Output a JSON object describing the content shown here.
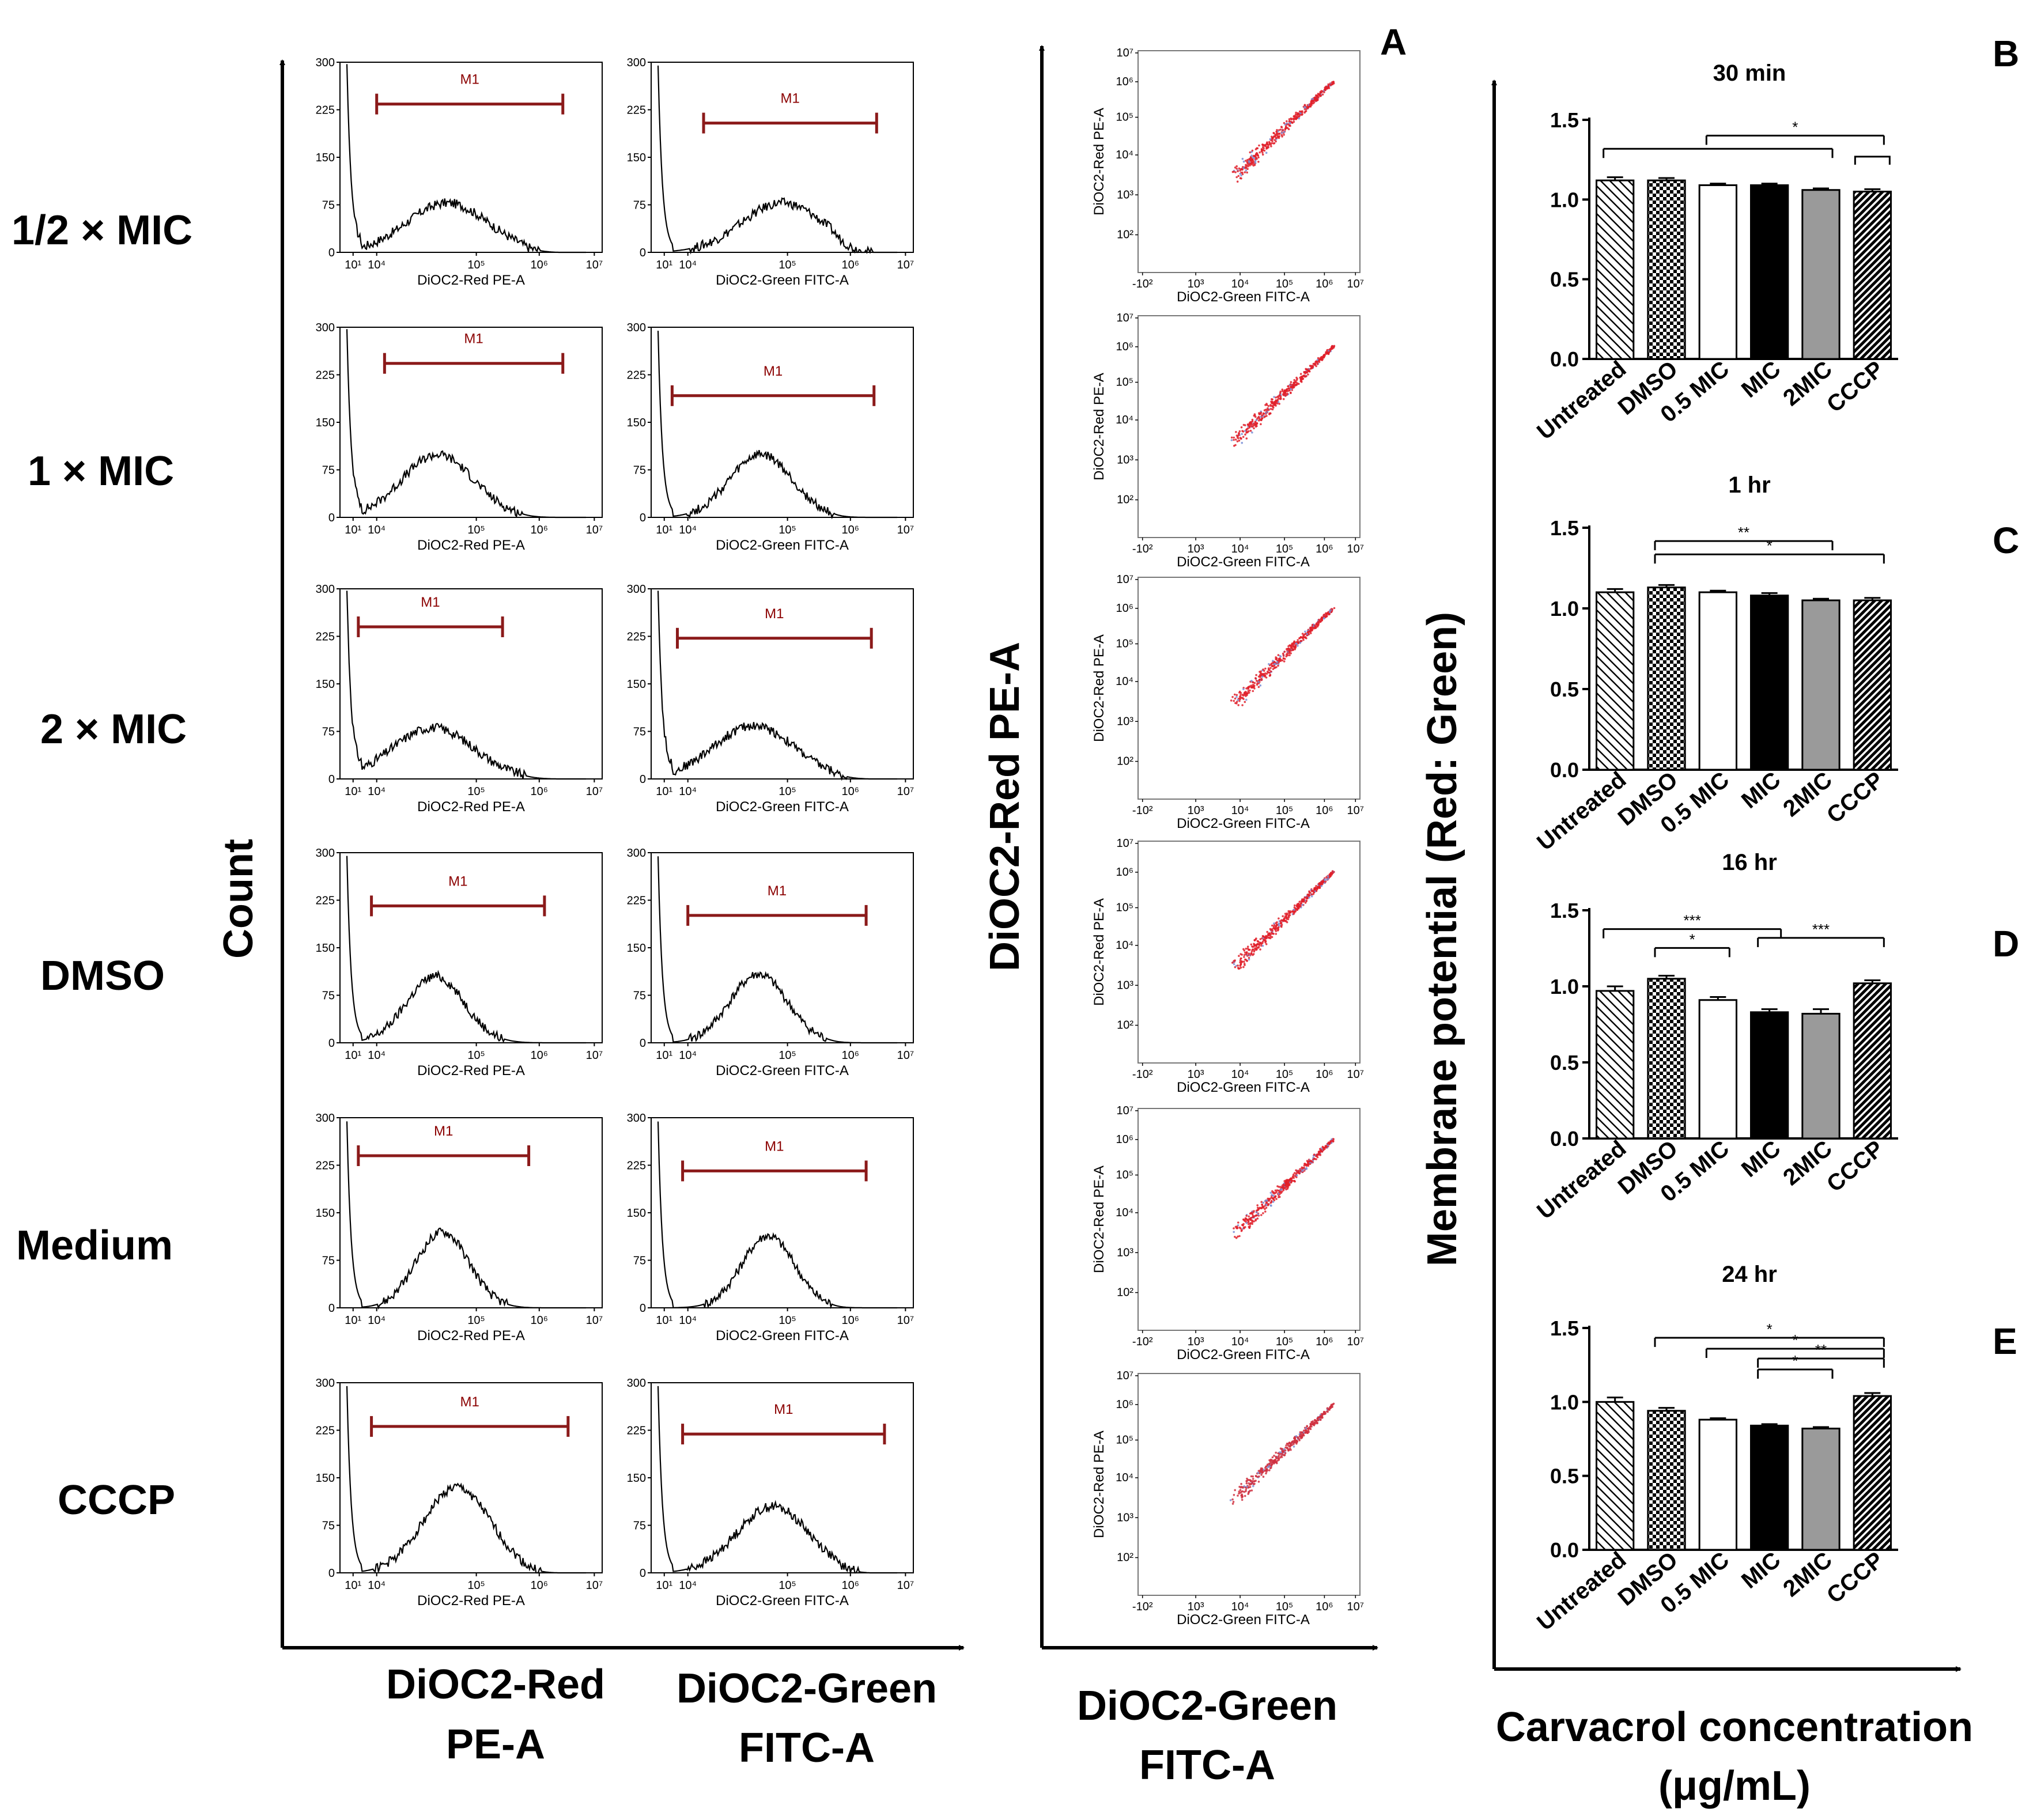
{
  "panel_labels": [
    "A",
    "B",
    "C",
    "D",
    "E"
  ],
  "row_labels": [
    "1/2 × MIC",
    "1 × MIC",
    "2 × MIC",
    "DMSO",
    "Medium",
    "CCCP"
  ],
  "axis_labels": {
    "hist_y": "Count",
    "hist_x_red": [
      "DiOC2-Red",
      "PE-A"
    ],
    "hist_x_green": [
      "DiOC2-Green",
      "FITC-A"
    ],
    "scatter_y": "DiOC2-Red PE-A",
    "scatter_x": [
      "DiOC2-Green",
      "FITC-A"
    ],
    "bar_y": "Membrane potential (Red: Green)",
    "bar_x": [
      "Carvacrol concentration",
      "(μg/mL)"
    ]
  },
  "chart_data": [
    {
      "type": "histogram",
      "panel": "A (histograms)",
      "columns": [
        "DiOC2-Red PE-A",
        "DiOC2-Green FITC-A"
      ],
      "gate_label": "M1",
      "y_ticks": [
        "0",
        "75",
        "150",
        "225",
        "300"
      ],
      "ylim": [
        0,
        300
      ],
      "x_ticks": [
        "10¹",
        "10⁴",
        "10⁵",
        "10⁶",
        "10⁷"
      ],
      "rows": [
        "1/2 × MIC",
        "1 × MIC",
        "2 × MIC",
        "DMSO",
        "Medium",
        "CCCP"
      ]
    },
    {
      "type": "scatter",
      "panel": "A (dot plots)",
      "xlabel": "DiOC2-Green FITC-A",
      "ylabel": "DiOC2-Red PE-A",
      "x_ticks": [
        "-10²",
        "10³",
        "10⁴",
        "10⁵",
        "10⁶",
        "10⁷"
      ],
      "y_ticks": [
        "10²",
        "10³",
        "10⁴",
        "10⁵",
        "10⁶",
        "10⁷"
      ],
      "x_range_log": [
        3.9,
        6.3
      ],
      "y_range_log": [
        3.9,
        6.2
      ],
      "rows": [
        "1/2 × MIC",
        "1 × MIC",
        "2 × MIC",
        "DMSO",
        "Medium",
        "CCCP"
      ]
    },
    {
      "type": "bar",
      "panel": "B",
      "title": "30 min",
      "categories": [
        "Untreated",
        "DMSO",
        "0.5 MIC",
        "MIC",
        "2MIC",
        "CCCP"
      ],
      "values": [
        1.12,
        1.12,
        1.09,
        1.09,
        1.06,
        1.05
      ],
      "errors": [
        0.02,
        0.015,
        0.01,
        0.01,
        0.01,
        0.015
      ],
      "ylim": [
        0,
        1.5
      ],
      "yticks": [
        "0.0",
        "0.5",
        "1.0",
        "1.5"
      ],
      "significance": [
        "*"
      ]
    },
    {
      "type": "bar",
      "panel": "C",
      "title": "1 hr",
      "categories": [
        "Untreated",
        "DMSO",
        "0.5 MIC",
        "MIC",
        "2MIC",
        "CCCP"
      ],
      "values": [
        1.1,
        1.13,
        1.1,
        1.08,
        1.05,
        1.05
      ],
      "errors": [
        0.02,
        0.015,
        0.01,
        0.015,
        0.01,
        0.015
      ],
      "ylim": [
        0,
        1.5
      ],
      "yticks": [
        "0.0",
        "0.5",
        "1.0",
        "1.5"
      ],
      "significance": [
        "**",
        "*"
      ]
    },
    {
      "type": "bar",
      "panel": "D",
      "title": "16 hr",
      "categories": [
        "Untreated",
        "DMSO",
        "0.5 MIC",
        "MIC",
        "2MIC",
        "CCCP"
      ],
      "values": [
        0.97,
        1.05,
        0.91,
        0.83,
        0.82,
        1.02
      ],
      "errors": [
        0.03,
        0.02,
        0.02,
        0.02,
        0.03,
        0.02
      ],
      "ylim": [
        0,
        1.5
      ],
      "yticks": [
        "0.0",
        "0.5",
        "1.0",
        "1.5"
      ],
      "significance": [
        "***",
        "*",
        "***"
      ]
    },
    {
      "type": "bar",
      "panel": "E",
      "title": "24 hr",
      "categories": [
        "Untreated",
        "DMSO",
        "0.5 MIC",
        "MIC",
        "2MIC",
        "CCCP"
      ],
      "values": [
        1.0,
        0.94,
        0.88,
        0.84,
        0.82,
        1.04
      ],
      "errors": [
        0.03,
        0.02,
        0.01,
        0.01,
        0.01,
        0.02
      ],
      "ylim": [
        0,
        1.5
      ],
      "yticks": [
        "0.0",
        "0.5",
        "1.0",
        "1.5"
      ],
      "significance": [
        "*",
        "*",
        "**",
        "*"
      ]
    }
  ]
}
